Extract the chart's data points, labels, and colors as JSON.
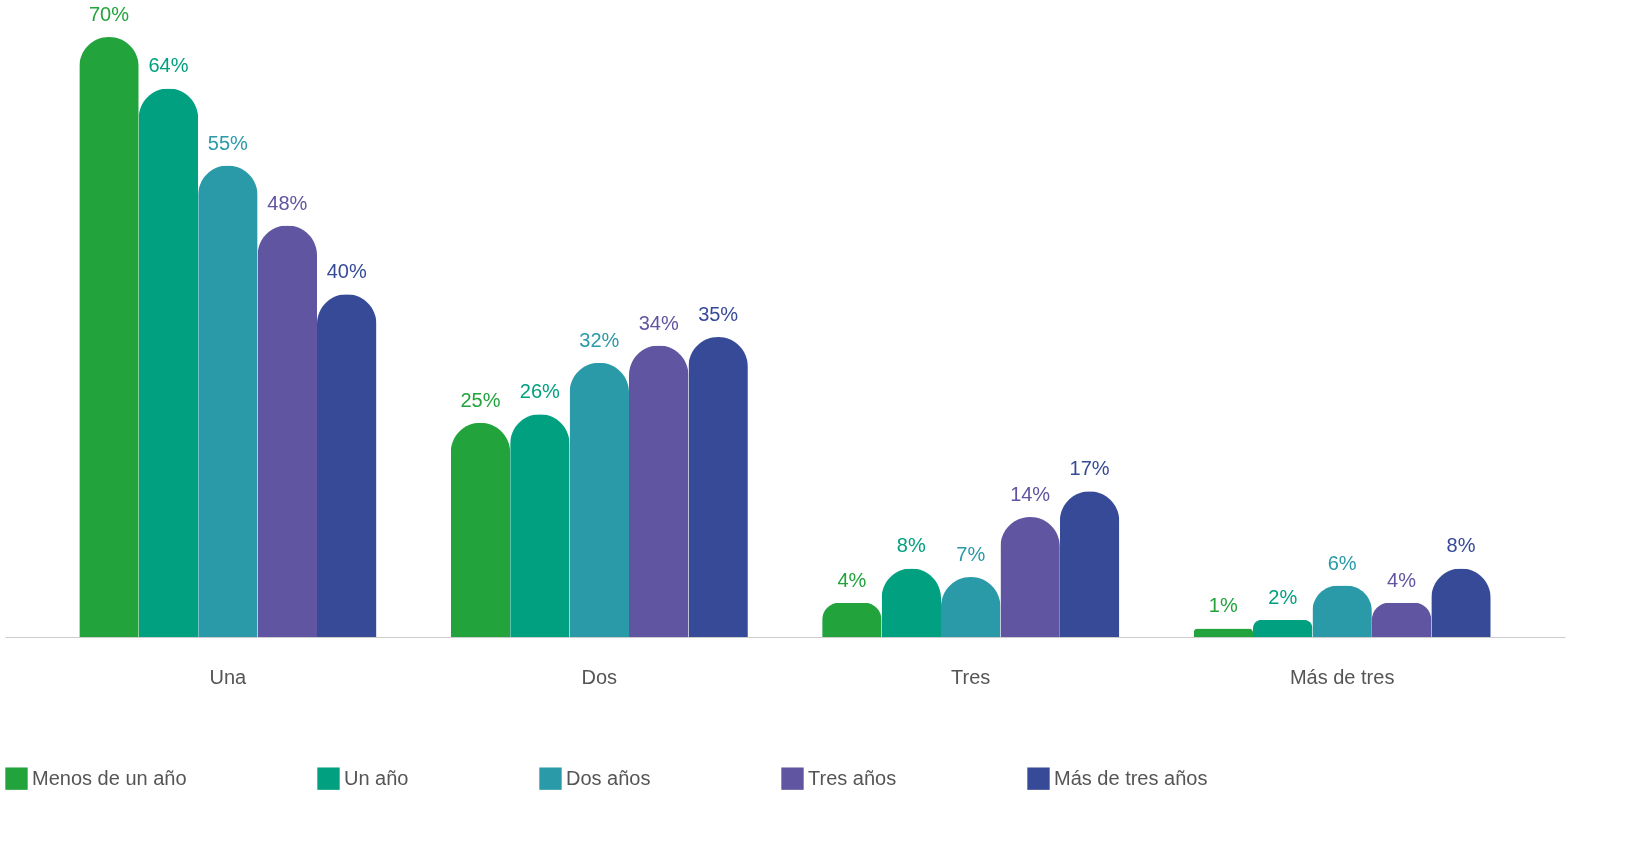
{
  "chart_data": {
    "type": "bar",
    "categories": [
      "Una",
      "Dos",
      "Tres",
      "Más de tres"
    ],
    "series": [
      {
        "name": "Menos de un año",
        "color": "#22a33c",
        "values": [
          70,
          25,
          4,
          1
        ],
        "value_labels": [
          "70%",
          "25%",
          "4%",
          "1%"
        ]
      },
      {
        "name": "Un año",
        "color": "#00a080",
        "values": [
          64,
          26,
          8,
          2
        ],
        "value_labels": [
          "64%",
          "26%",
          "8%",
          "2%"
        ]
      },
      {
        "name": "Dos años",
        "color": "#2a9aa8",
        "values": [
          55,
          32,
          7,
          6
        ],
        "value_labels": [
          "55%",
          "32%",
          "7%",
          "6%"
        ]
      },
      {
        "name": "Tres años",
        "color": "#5f55a0",
        "values": [
          48,
          34,
          14,
          4
        ],
        "value_labels": [
          "48%",
          "34%",
          "14%",
          "4%"
        ]
      },
      {
        "name": "Más de tres años",
        "color": "#364a98",
        "values": [
          40,
          35,
          17,
          8
        ],
        "value_labels": [
          "40%",
          "35%",
          "17%",
          "8%"
        ]
      }
    ],
    "legend": "bottom",
    "grid": false
  }
}
